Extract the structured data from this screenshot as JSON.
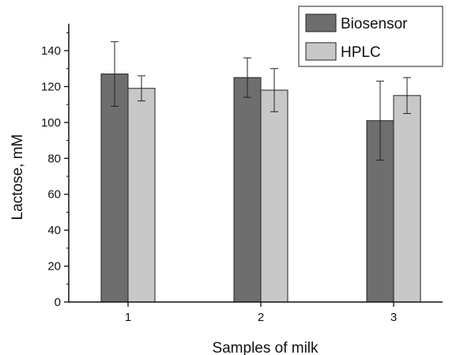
{
  "chart_data": {
    "type": "bar",
    "title": "",
    "xlabel": "Samples of milk",
    "ylabel": "Lactose, mM",
    "categories": [
      "1",
      "2",
      "3"
    ],
    "ylim": [
      0,
      155
    ],
    "yticks": [
      0,
      20,
      40,
      60,
      80,
      100,
      120,
      140
    ],
    "grid": false,
    "legend_position": "top-right",
    "series": [
      {
        "name": "Biosensor",
        "color": "#6e6e6e",
        "values": [
          127,
          125,
          101
        ],
        "errors": [
          18,
          11,
          22
        ]
      },
      {
        "name": "HPLC",
        "color": "#c8c8c8",
        "values": [
          119,
          118,
          115
        ],
        "errors": [
          7,
          12,
          10
        ]
      }
    ]
  }
}
